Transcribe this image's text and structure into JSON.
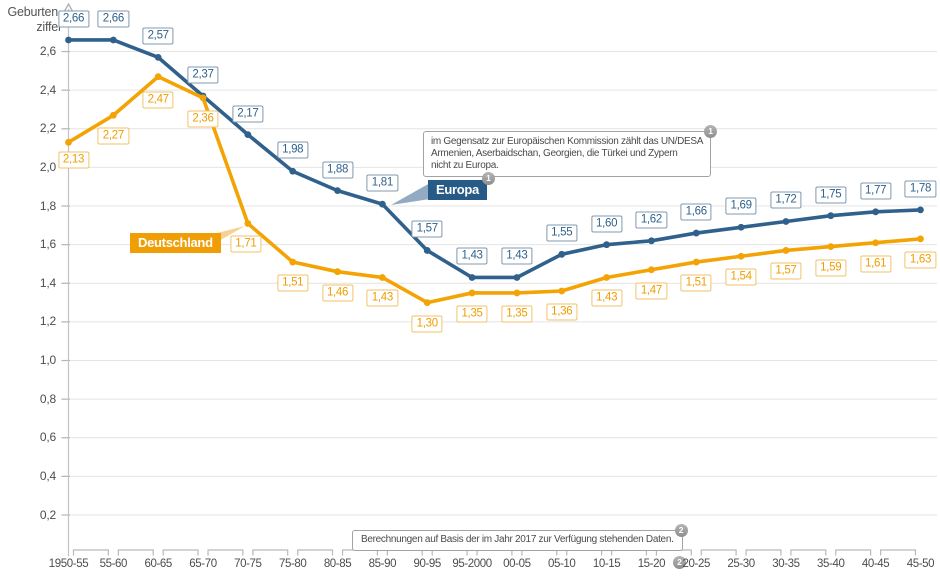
{
  "chart_data": {
    "type": "line",
    "title": "",
    "xlabel": "",
    "ylabel_lines": [
      "Geburten-",
      "ziffer"
    ],
    "ylim": [
      0,
      2.75
    ],
    "grid": true,
    "legend_position": "inline-callouts",
    "yticks": [
      "0,2",
      "0,4",
      "0,6",
      "0,8",
      "1,0",
      "1,2",
      "1,4",
      "1,6",
      "1,8",
      "2,0",
      "2,2",
      "2,4",
      "2,6"
    ],
    "categories": [
      "1950-55",
      "55-60",
      "60-65",
      "65-70",
      "70-75",
      "75-80",
      "80-85",
      "85-90",
      "90-95",
      "95-2000",
      "00-05",
      "05-10",
      "10-15",
      "15-20",
      "20-25",
      "25-30",
      "30-35",
      "35-40",
      "40-45",
      "45-50"
    ],
    "series": [
      {
        "name": "Europa",
        "color": "#30618c",
        "values": [
          2.66,
          2.66,
          2.57,
          2.37,
          2.17,
          1.98,
          1.88,
          1.81,
          1.57,
          1.43,
          1.43,
          1.55,
          1.6,
          1.62,
          1.66,
          1.69,
          1.72,
          1.75,
          1.77,
          1.78
        ],
        "labels": [
          "2,66",
          "2,66",
          "2,57",
          "2,37",
          "2,17",
          "1,98",
          "1,88",
          "1,81",
          "1,57",
          "1,43",
          "1,43",
          "1,55",
          "1,60",
          "1,62",
          "1,66",
          "1,69",
          "1,72",
          "1,75",
          "1,77",
          "1,78"
        ]
      },
      {
        "name": "Deutschland",
        "color": "#f3a304",
        "values": [
          2.13,
          2.27,
          2.47,
          2.36,
          1.71,
          1.51,
          1.46,
          1.43,
          1.3,
          1.35,
          1.35,
          1.36,
          1.43,
          1.47,
          1.51,
          1.54,
          1.57,
          1.59,
          1.61,
          1.63
        ],
        "labels": [
          "2,13",
          "2,27",
          "2,47",
          "2,36",
          "1,71",
          "1,51",
          "1,46",
          "1,43",
          "1,30",
          "1,35",
          "1,35",
          "1,36",
          "1,43",
          "1,47",
          "1,51",
          "1,54",
          "1,57",
          "1,59",
          "1,61",
          "1,63"
        ]
      }
    ],
    "annotations": [
      {
        "marker": "1",
        "lines": [
          "im Gegensatz zur Europäischen Kommission zählt das UN/DESA",
          "Armenien, Aserbaidschan, Georgien, die Türkei und Zypern",
          "nicht zu Europa."
        ]
      },
      {
        "marker": "2",
        "text": "Berechnungen auf Basis der im Jahr 2017 zur Verfügung stehenden Daten."
      }
    ]
  },
  "badges": [
    {
      "id": "series-europa",
      "label": "1"
    },
    {
      "id": "annotation-europa",
      "label": "1"
    },
    {
      "id": "annotation-basis",
      "label": "2"
    },
    {
      "id": "category-15-20",
      "label": "2"
    }
  ]
}
